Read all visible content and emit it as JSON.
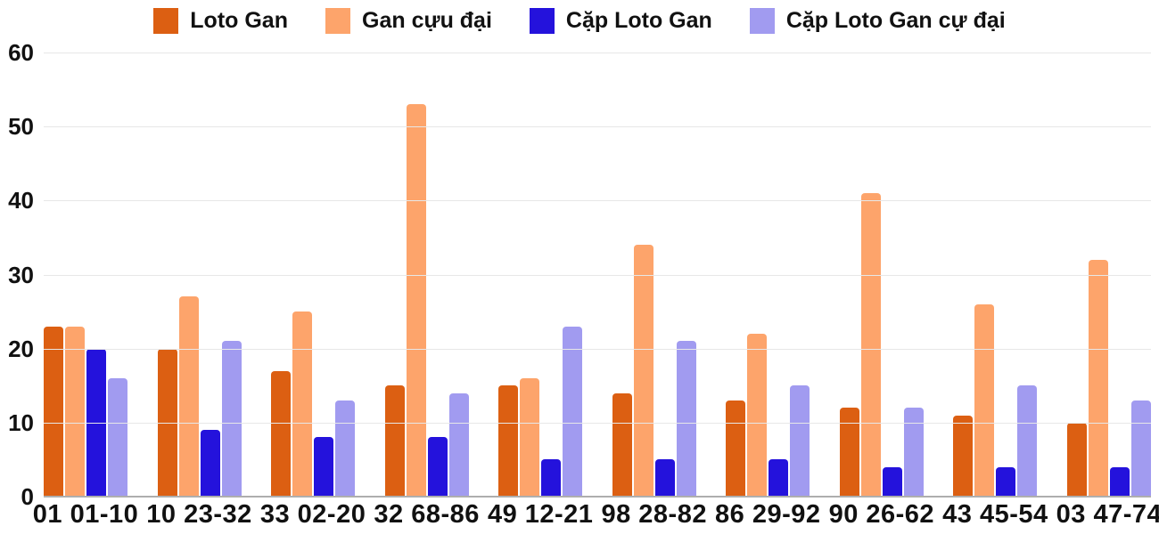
{
  "chart_data": {
    "type": "bar",
    "title": "",
    "xlabel": "",
    "ylabel": "",
    "categories": [
      "01 01-10",
      "10 23-32",
      "33 02-20",
      "32 68-86",
      "49 12-21",
      "98 28-82",
      "86 29-92",
      "90 26-62",
      "43 45-54",
      "03 47-74"
    ],
    "series": [
      {
        "name": "Loto Gan",
        "color": "#DC5F12",
        "values": [
          23,
          20,
          17,
          15,
          15,
          14,
          13,
          12,
          11,
          10
        ]
      },
      {
        "name": "Gan cựu đại",
        "color": "#FDA46B",
        "values": [
          23,
          27,
          25,
          53,
          16,
          34,
          22,
          41,
          26,
          32
        ]
      },
      {
        "name": "Cặp Loto Gan",
        "color": "#2412DC",
        "values": [
          20,
          9,
          8,
          8,
          5,
          5,
          5,
          4,
          4,
          4
        ]
      },
      {
        "name": "Cặp Loto Gan cự đại",
        "color": "#A19BF0",
        "values": [
          16,
          21,
          13,
          14,
          23,
          21,
          15,
          12,
          15,
          13
        ]
      }
    ],
    "ylim": [
      0,
      60
    ],
    "yticks": [
      0,
      10,
      20,
      30,
      40,
      50,
      60
    ],
    "grid": true,
    "legend_position": "top",
    "background_color": "#FFFFFF",
    "grid_color": "#E7E7E7",
    "axis_line_color": "#AEAEAE",
    "text_color": "#111111"
  }
}
